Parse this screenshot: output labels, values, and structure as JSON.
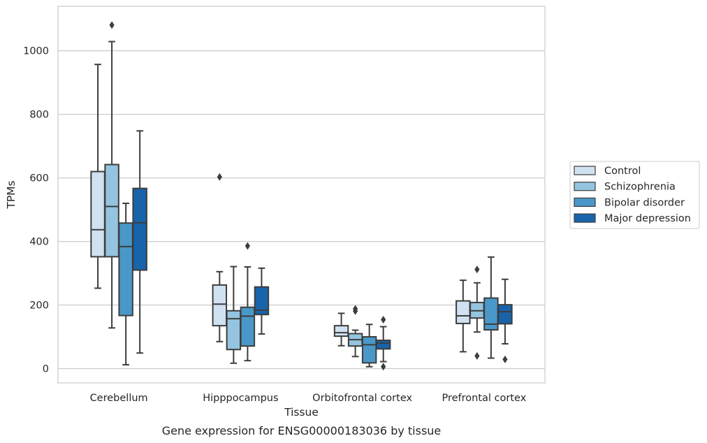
{
  "chart_data": {
    "type": "box",
    "caption": "Gene expression for ENSG00000183036 by tissue",
    "xlabel": "Tissue",
    "ylabel": "TPMs",
    "ylim": [
      -45,
      1140
    ],
    "yticks": [
      0,
      200,
      400,
      600,
      800,
      1000
    ],
    "grid": true,
    "legend_position": "right",
    "categories": [
      "Cerebellum",
      "Hipppocampus",
      "Orbitofrontal cortex",
      "Prefrontal cortex"
    ],
    "series": [
      {
        "name": "Control",
        "color": "#d0e1f2",
        "boxes": [
          {
            "whislo": 253,
            "q1": 352,
            "med": 437,
            "q3": 620,
            "whishi": 957,
            "fliers": []
          },
          {
            "whislo": 85,
            "q1": 135,
            "med": 203,
            "q3": 263,
            "whishi": 305,
            "fliers": [
              603
            ]
          },
          {
            "whislo": 72,
            "q1": 102,
            "med": 113,
            "q3": 135,
            "whishi": 174,
            "fliers": []
          },
          {
            "whislo": 53,
            "q1": 142,
            "med": 166,
            "q3": 213,
            "whishi": 278,
            "fliers": []
          }
        ]
      },
      {
        "name": "Schizophrenia",
        "color": "#94c4df",
        "boxes": [
          {
            "whislo": 128,
            "q1": 352,
            "med": 510,
            "q3": 642,
            "whishi": 1029,
            "fliers": [
              1081
            ]
          },
          {
            "whislo": 17,
            "q1": 60,
            "med": 157,
            "q3": 182,
            "whishi": 321,
            "fliers": []
          },
          {
            "whislo": 38,
            "q1": 71,
            "med": 91,
            "q3": 110,
            "whishi": 121,
            "fliers": [
              181,
              188
            ]
          },
          {
            "whislo": 115,
            "q1": 159,
            "med": 182,
            "q3": 208,
            "whishi": 270,
            "fliers": [
              40,
              312
            ]
          }
        ]
      },
      {
        "name": "Bipolar disorder",
        "color": "#4a98c9",
        "boxes": [
          {
            "whislo": 12,
            "q1": 167,
            "med": 384,
            "q3": 458,
            "whishi": 520,
            "fliers": []
          },
          {
            "whislo": 25,
            "q1": 71,
            "med": 165,
            "q3": 193,
            "whishi": 320,
            "fliers": [
              386
            ]
          },
          {
            "whislo": 6,
            "q1": 18,
            "med": 75,
            "q3": 100,
            "whishi": 139,
            "fliers": []
          },
          {
            "whislo": 33,
            "q1": 122,
            "med": 140,
            "q3": 222,
            "whishi": 351,
            "fliers": []
          }
        ]
      },
      {
        "name": "Major depression",
        "color": "#1764ab",
        "boxes": [
          {
            "whislo": 49,
            "q1": 310,
            "med": 459,
            "q3": 567,
            "whishi": 748,
            "fliers": []
          },
          {
            "whislo": 109,
            "q1": 170,
            "med": 184,
            "q3": 257,
            "whishi": 316,
            "fliers": []
          },
          {
            "whislo": 22,
            "q1": 62,
            "med": 80,
            "q3": 89,
            "whishi": 132,
            "fliers": [
              6,
              154
            ]
          },
          {
            "whislo": 78,
            "q1": 141,
            "med": 179,
            "q3": 201,
            "whishi": 281,
            "fliers": [
              29
            ]
          }
        ]
      }
    ]
  }
}
